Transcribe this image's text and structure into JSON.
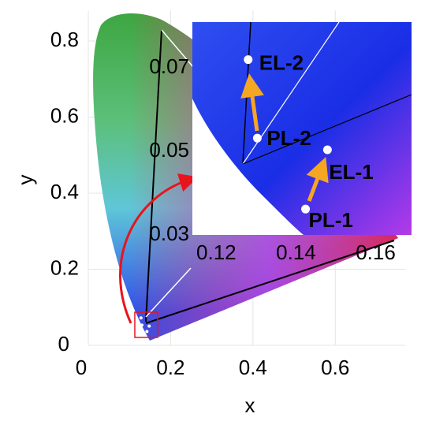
{
  "chart_data": [
    {
      "type": "scatter",
      "x_label": "x",
      "y_label": "y",
      "xlim": [
        0,
        0.77
      ],
      "ylim": [
        0,
        0.88
      ],
      "xticks": [
        0,
        0.2,
        0.4,
        0.6
      ],
      "yticks": [
        0,
        0.2,
        0.4,
        0.6,
        0.8
      ],
      "grid": true,
      "x": [
        0.128,
        0.1303,
        0.1479,
        0.1424
      ],
      "series": [
        {
          "color": "#ffffff",
          "values": [
            0.072,
            0.0532,
            0.0504,
            0.0362
          ]
        }
      ]
    },
    {
      "type": "scatter",
      "xlim": [
        0.114,
        0.169
      ],
      "ylim": [
        0.03,
        0.081
      ],
      "xticks": [
        0.12,
        0.14,
        0.16
      ],
      "yticks": [
        0.03,
        0.05,
        0.07
      ],
      "grid": false,
      "x": [
        0.128,
        0.1303,
        0.1479,
        0.1424
      ],
      "series": [
        {
          "color": "#ffffff",
          "values": [
            0.072,
            0.0532,
            0.0504,
            0.0362
          ]
        }
      ],
      "point_labels": [
        "EL-2",
        "PL-2",
        "EL-1",
        "PL-1"
      ],
      "point_label_color": "#f5a623"
    }
  ]
}
